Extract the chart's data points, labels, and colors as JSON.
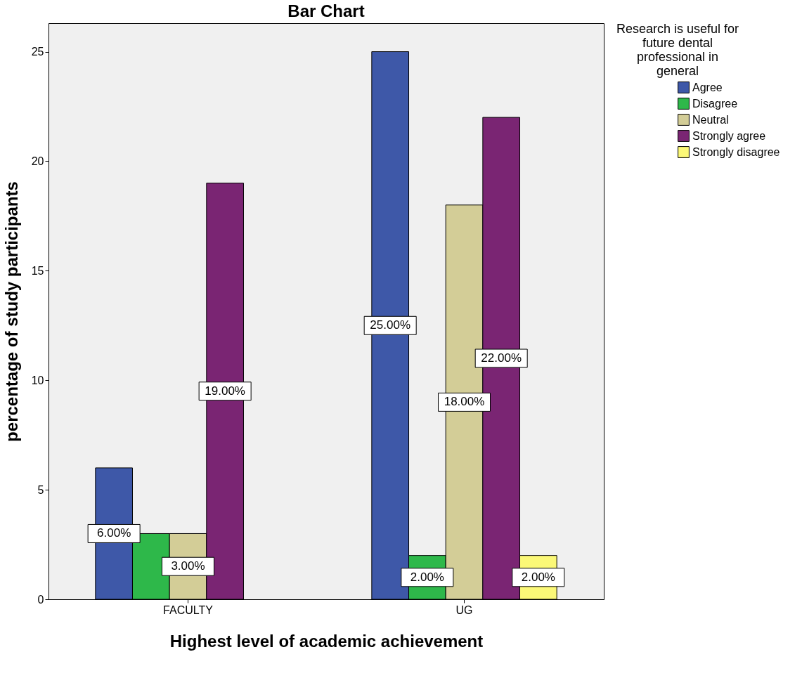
{
  "chart_data": {
    "type": "bar",
    "title": "Bar Chart",
    "xlabel": "Highest level of academic achievement",
    "ylabel": "percentage of study participants",
    "legend_title": "Research is useful for future dental professional in general",
    "categories": [
      "FACULTY",
      "UG"
    ],
    "series": [
      {
        "name": "Agree",
        "color": "#3e58a8",
        "values": [
          6,
          25
        ],
        "value_labels": [
          "6.00%",
          "25.00%"
        ]
      },
      {
        "name": "Disagree",
        "color": "#2eb84a",
        "values": [
          3,
          2
        ],
        "value_labels": [
          null,
          "2.00%"
        ]
      },
      {
        "name": "Neutral",
        "color": "#d3cd97",
        "values": [
          3,
          18
        ],
        "value_labels": [
          "3.00%",
          "18.00%"
        ]
      },
      {
        "name": "Strongly agree",
        "color": "#7a2573",
        "values": [
          19,
          22
        ],
        "value_labels": [
          "19.00%",
          "22.00%"
        ]
      },
      {
        "name": "Strongly disagree",
        "color": "#fbf877",
        "values": [
          null,
          2
        ],
        "value_labels": [
          null,
          "2.00%"
        ]
      }
    ],
    "ylim": [
      0,
      26.3
    ],
    "yticks": [
      0,
      5,
      10,
      15,
      20,
      25
    ],
    "grid": false,
    "legend": "right"
  }
}
